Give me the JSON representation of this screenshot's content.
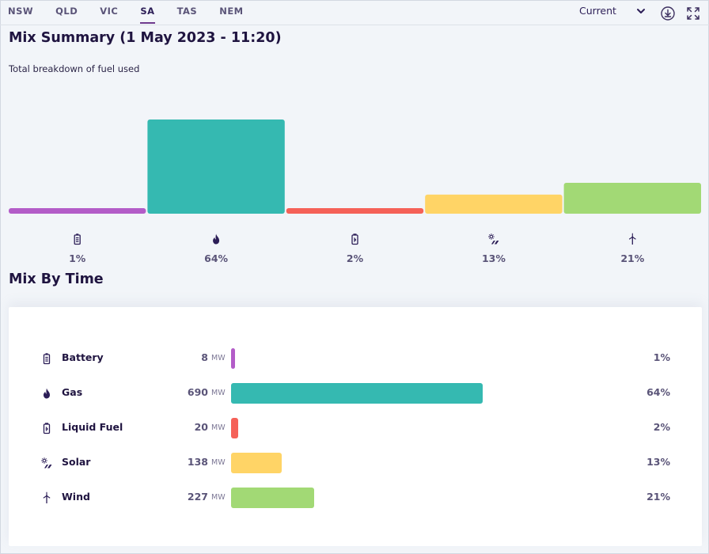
{
  "nav": {
    "tabs": [
      {
        "label": "NSW",
        "active": false
      },
      {
        "label": "QLD",
        "active": false
      },
      {
        "label": "VIC",
        "active": false
      },
      {
        "label": "SA",
        "active": true
      },
      {
        "label": "TAS",
        "active": false
      },
      {
        "label": "NEM",
        "active": false
      }
    ],
    "period_select": "Current",
    "download_icon": "download-icon",
    "fullscreen_icon": "fullscreen-icon"
  },
  "summary": {
    "title": "Mix Summary (1 May 2023 - 11:20)",
    "subtitle": "Total breakdown of fuel used"
  },
  "mix_by_time": {
    "title": "Mix By Time"
  },
  "colors": {
    "battery": "#b35cc8",
    "gas": "#35b9b1",
    "liquid_fuel": "#f56158",
    "solar": "#ffd466",
    "wind": "#a2d975",
    "accent": "#6e3a8e"
  },
  "chart_data": {
    "type": "bar",
    "categories": [
      "Battery",
      "Gas",
      "Liquid Fuel",
      "Solar",
      "Wind"
    ],
    "values": [
      1,
      64,
      2,
      13,
      21
    ],
    "value_labels": [
      "1%",
      "64%",
      "2%",
      "13%",
      "21%"
    ],
    "icons": [
      "battery-icon",
      "flame-icon",
      "fuel-can-icon",
      "solar-icon",
      "wind-turbine-icon"
    ],
    "colors": [
      "#b35cc8",
      "#35b9b1",
      "#f56158",
      "#ffd466",
      "#a2d975"
    ]
  },
  "fuels": [
    {
      "name": "Battery",
      "value": "8",
      "unit": "MW",
      "mw": 8,
      "pct": "1%",
      "icon": "battery-icon",
      "color": "#b35cc8"
    },
    {
      "name": "Gas",
      "value": "690",
      "unit": "MW",
      "mw": 690,
      "pct": "64%",
      "icon": "flame-icon",
      "color": "#35b9b1"
    },
    {
      "name": "Liquid Fuel",
      "value": "20",
      "unit": "MW",
      "mw": 20,
      "pct": "2%",
      "icon": "fuel-can-icon",
      "color": "#f56158"
    },
    {
      "name": "Solar",
      "value": "138",
      "unit": "MW",
      "mw": 138,
      "pct": "13%",
      "icon": "solar-icon",
      "color": "#ffd466"
    },
    {
      "name": "Wind",
      "value": "227",
      "unit": "MW",
      "mw": 227,
      "pct": "21%",
      "icon": "wind-turbine-icon",
      "color": "#a2d975"
    }
  ]
}
